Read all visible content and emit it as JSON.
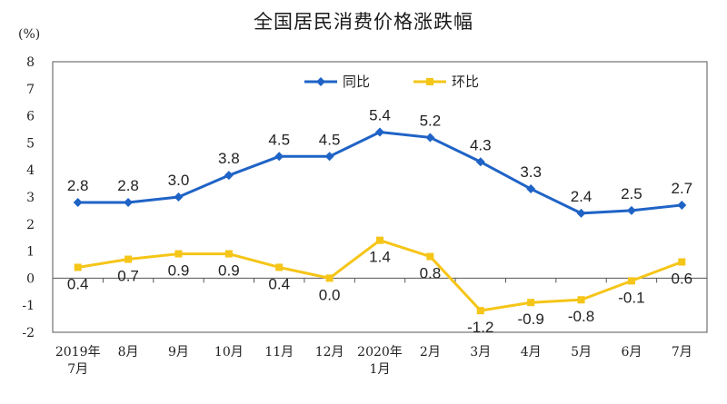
{
  "chart_data": {
    "type": "line",
    "title": "全国居民消费价格涨跌幅",
    "ylabel": "(%)",
    "ylim": [
      -2,
      8
    ],
    "yticks": [
      "8",
      "7",
      "6",
      "5",
      "4",
      "3",
      "2",
      "1",
      "0",
      "-1",
      "-2"
    ],
    "ytick_values": [
      8,
      7,
      6,
      5,
      4,
      3,
      2,
      1,
      0,
      -1,
      -2
    ],
    "categories": [
      [
        "2019年",
        "7月"
      ],
      [
        "8月"
      ],
      [
        "9月"
      ],
      [
        "10月"
      ],
      [
        "11月"
      ],
      [
        "12月"
      ],
      [
        "2020年",
        "1月"
      ],
      [
        "2月"
      ],
      [
        "3月"
      ],
      [
        "4月"
      ],
      [
        "5月"
      ],
      [
        "6月"
      ],
      [
        "7月"
      ]
    ],
    "legend_position": "top-center",
    "grid": false,
    "series": [
      {
        "name": "同比",
        "color": "#1f63c6",
        "marker": "diamond",
        "values": [
          2.8,
          2.8,
          3.0,
          3.8,
          4.5,
          4.5,
          5.4,
          5.2,
          4.3,
          3.3,
          2.4,
          2.5,
          2.7
        ],
        "labels": [
          "2.8",
          "2.8",
          "3.0",
          "3.8",
          "4.5",
          "4.5",
          "5.4",
          "5.2",
          "4.3",
          "3.3",
          "2.4",
          "2.5",
          "2.7"
        ]
      },
      {
        "name": "环比",
        "color": "#f5c518",
        "marker": "square",
        "values": [
          0.4,
          0.7,
          0.9,
          0.9,
          0.4,
          0.0,
          1.4,
          0.8,
          -1.2,
          -0.9,
          -0.8,
          -0.1,
          0.6
        ],
        "labels": [
          "0.4",
          "0.7",
          "0.9",
          "0.9",
          "0.4",
          "0.0",
          "1.4",
          "0.8",
          "-1.2",
          "-0.9",
          "-0.8",
          "-0.1",
          "0.6"
        ]
      }
    ]
  }
}
